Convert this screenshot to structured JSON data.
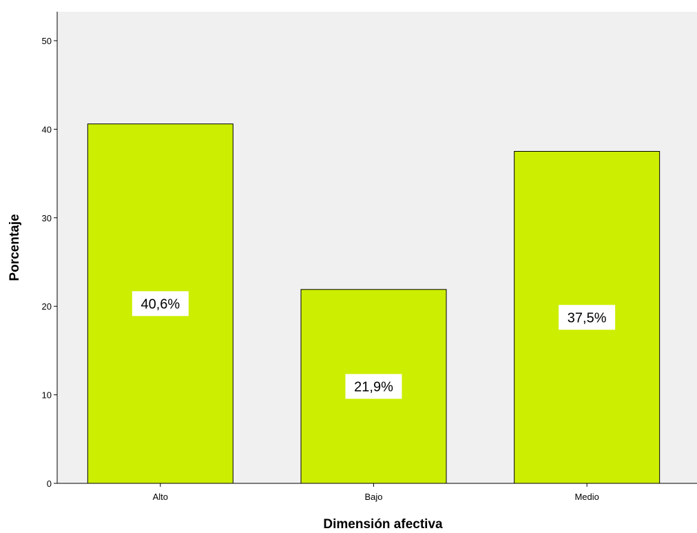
{
  "chart_data": {
    "type": "bar",
    "categories": [
      "Alto",
      "Bajo",
      "Medio"
    ],
    "values": [
      40.6,
      21.9,
      37.5
    ],
    "data_labels": [
      "40,6%",
      "21,9%",
      "37,5%"
    ],
    "title": "",
    "xlabel": "Dimensión afectiva",
    "ylabel": "Porcentaje",
    "ylim": [
      0,
      50
    ],
    "yticks": [
      0,
      10,
      20,
      30,
      40,
      50
    ],
    "grid": false,
    "legend": "none",
    "colors": {
      "bar_fill": "#ccee00",
      "bar_stroke": "#000000",
      "plot_background": "#f0f0f0",
      "label_background": "#ffffff"
    }
  }
}
